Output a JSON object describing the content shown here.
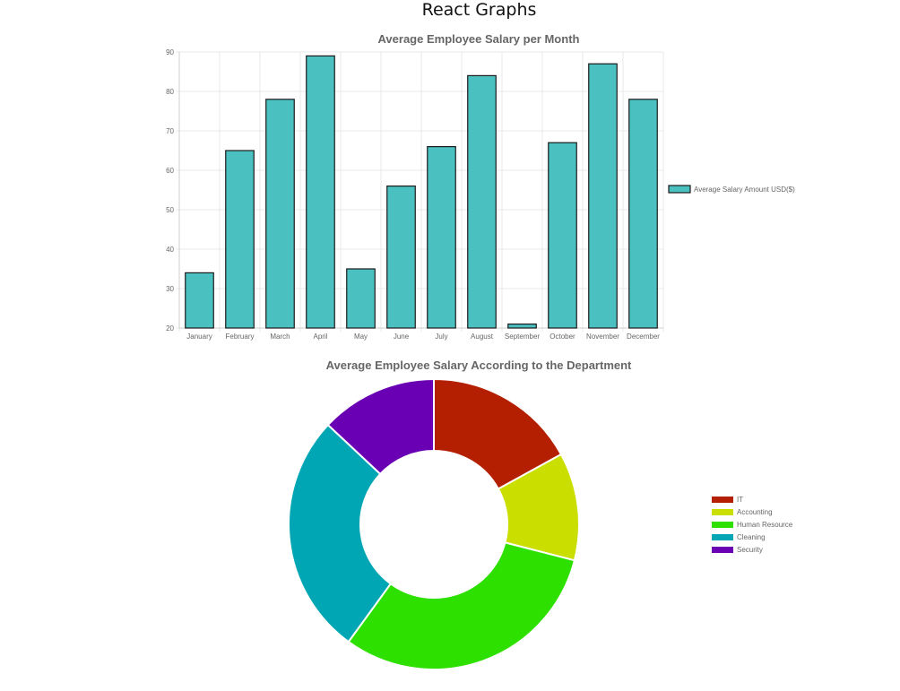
{
  "page": {
    "title": "React Graphs"
  },
  "chart_data": [
    {
      "type": "bar",
      "title": "Average Employee Salary per Month",
      "categories": [
        "January",
        "February",
        "March",
        "April",
        "May",
        "June",
        "July",
        "August",
        "September",
        "October",
        "November",
        "December"
      ],
      "series": [
        {
          "name": "Average Salary Amount USD($)",
          "values": [
            34,
            65,
            78,
            89,
            35,
            56,
            66,
            84,
            21,
            67,
            87,
            78
          ]
        }
      ],
      "ylim": [
        20,
        90
      ],
      "yticks": [
        20,
        30,
        40,
        50,
        60,
        70,
        80,
        90
      ],
      "grid": true,
      "legend_position": "right",
      "colors": {
        "bar_fill": "#4bc0c0",
        "bar_border": "#1a1a1a"
      }
    },
    {
      "type": "pie",
      "subtype": "doughnut",
      "title": "Average Employee Salary According to the Department",
      "labels": [
        "IT",
        "Accounting",
        "Human Resource",
        "Cleaning",
        "Security"
      ],
      "values": [
        17,
        12,
        31,
        27,
        13
      ],
      "colors": [
        "#b31f00",
        "#cadf00",
        "#2ee000",
        "#00a6b3",
        "#6a00b3"
      ],
      "legend_position": "right"
    }
  ]
}
